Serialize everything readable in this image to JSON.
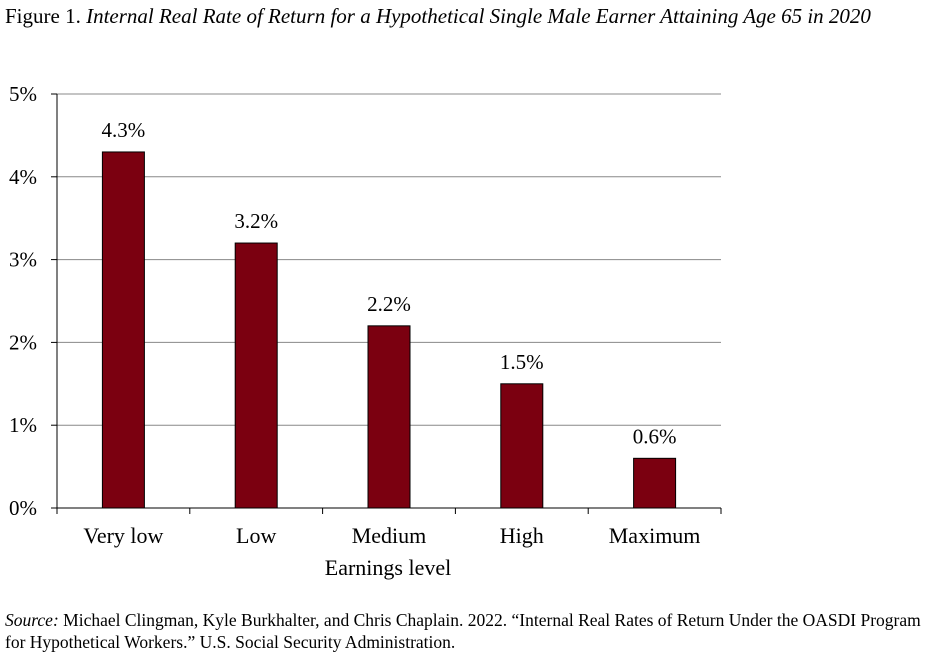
{
  "figure": {
    "label": "Figure 1.",
    "title": "Internal Real Rate of Return for a Hypothetical Single Male Earner Attaining Age 65 in 2020"
  },
  "source": {
    "label": "Source:",
    "text": "Michael Clingman, Kyle Burkhalter, and Chris Chaplain. 2022. “Internal Real Rates of Return Under the OASDI Program for Hypothetical Workers.” U.S. Social Security Administration."
  },
  "chart_data": {
    "type": "bar",
    "categories": [
      "Very low",
      "Low",
      "Medium",
      "High",
      "Maximum"
    ],
    "values": [
      4.3,
      3.2,
      2.2,
      1.5,
      0.6
    ],
    "value_labels": [
      "4.3%",
      "3.2%",
      "2.2%",
      "1.5%",
      "0.6%"
    ],
    "xlabel": "Earnings level",
    "ylabel": "",
    "ylim": [
      0,
      5
    ],
    "yticks": [
      0,
      1,
      2,
      3,
      4,
      5
    ],
    "ytick_labels": [
      "0%",
      "1%",
      "2%",
      "3%",
      "4%",
      "5%"
    ],
    "grid": true,
    "bar_color": "#7b0010",
    "grid_color": "#888888"
  }
}
